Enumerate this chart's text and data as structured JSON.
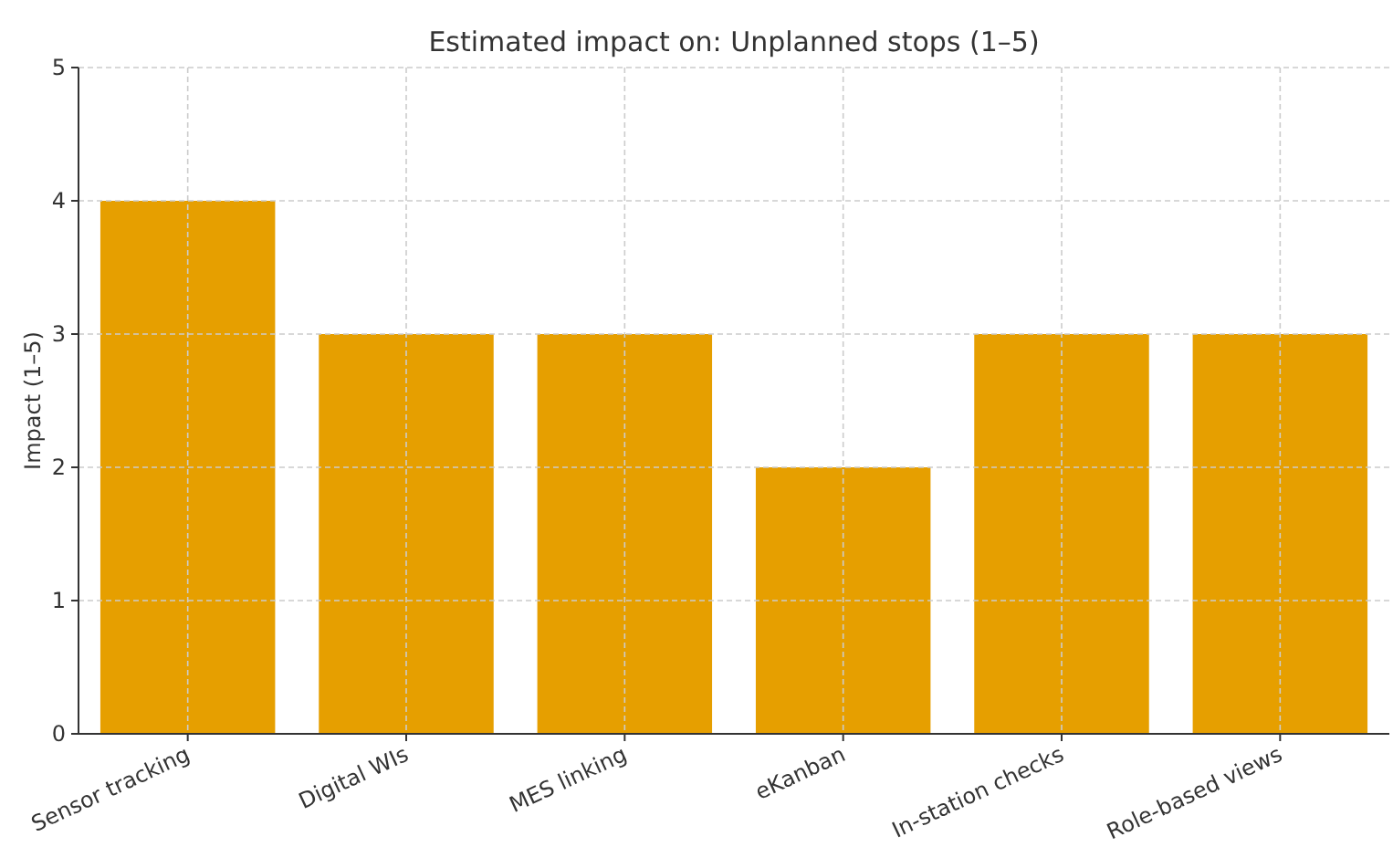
{
  "chart_data": {
    "type": "bar",
    "title": "Estimated impact on: Unplanned stops (1–5)",
    "ylabel": "Impact (1–5)",
    "categories": [
      "Sensor tracking",
      "Digital WIs",
      "MES linking",
      "eKanban",
      "In-station checks",
      "Role-based views"
    ],
    "values": [
      4,
      3,
      3,
      2,
      3,
      3
    ],
    "color": "#e69f00",
    "ylim": [
      0,
      5
    ],
    "yticks": [
      0,
      1,
      2,
      3,
      4,
      5
    ],
    "grid": true
  }
}
